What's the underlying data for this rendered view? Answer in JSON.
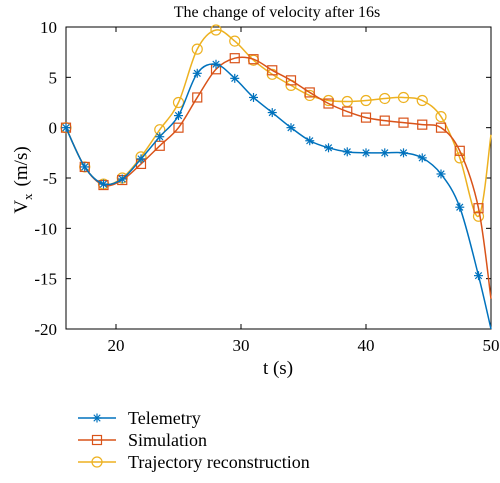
{
  "chart_data": {
    "type": "line",
    "title": "The change of velocity after 16s",
    "xlabel": "t (s)",
    "ylabel_main": "V",
    "ylabel_sub": "x",
    "ylabel_unit": "(m/s)",
    "xlim": [
      16,
      50
    ],
    "ylim": [
      -20,
      10
    ],
    "xticks": [
      20,
      30,
      40,
      50
    ],
    "yticks": [
      -20,
      -15,
      -10,
      -5,
      0,
      5,
      10
    ],
    "grid": false,
    "legend_position": "bottom-left, below plot",
    "series": [
      {
        "name": "Telemetry",
        "color": "#0072BD",
        "marker": "asterisk",
        "x": [
          16,
          17.5,
          19,
          20.5,
          22,
          23.5,
          25,
          26.5,
          28,
          29.5,
          31,
          32.5,
          34,
          35.5,
          37,
          38.5,
          40,
          41.5,
          43,
          44.5,
          46,
          47.5,
          49,
          50
        ],
        "y": [
          0,
          -3.9,
          -5.6,
          -5.1,
          -3.1,
          -0.9,
          1.2,
          5.4,
          6.3,
          4.9,
          3.0,
          1.5,
          0.0,
          -1.3,
          -2.0,
          -2.4,
          -2.5,
          -2.5,
          -2.5,
          -3.0,
          -4.6,
          -7.9,
          -14.7,
          -20.0
        ]
      },
      {
        "name": "Simulation",
        "color": "#D95319",
        "marker": "square",
        "x": [
          16,
          17.5,
          19,
          20.5,
          22,
          23.5,
          25,
          26.5,
          28,
          29.5,
          31,
          32.5,
          34,
          35.5,
          37,
          38.5,
          40,
          41.5,
          43,
          44.5,
          46,
          47.5,
          49,
          50
        ],
        "y": [
          0,
          -3.9,
          -5.7,
          -5.2,
          -3.6,
          -1.8,
          0.0,
          3.0,
          5.8,
          6.9,
          6.8,
          5.7,
          4.7,
          3.5,
          2.4,
          1.6,
          1.0,
          0.7,
          0.5,
          0.3,
          0.0,
          -2.3,
          -8.0,
          -17.0
        ]
      },
      {
        "name": "Trajectory reconstruction",
        "color": "#EDB120",
        "marker": "circle",
        "x": [
          16,
          17.5,
          19,
          20.5,
          22,
          23.5,
          25,
          26.5,
          28,
          29.5,
          31,
          32.5,
          34,
          35.5,
          37,
          38.5,
          40,
          41.5,
          43,
          44.5,
          46,
          47.5,
          49,
          50
        ],
        "y": [
          0,
          -3.9,
          -5.6,
          -5.0,
          -2.9,
          -0.2,
          2.5,
          7.8,
          9.7,
          8.6,
          6.7,
          5.3,
          4.2,
          3.2,
          2.7,
          2.6,
          2.7,
          2.9,
          3.0,
          2.7,
          1.1,
          -3.0,
          -8.8,
          -0.7
        ]
      }
    ]
  }
}
